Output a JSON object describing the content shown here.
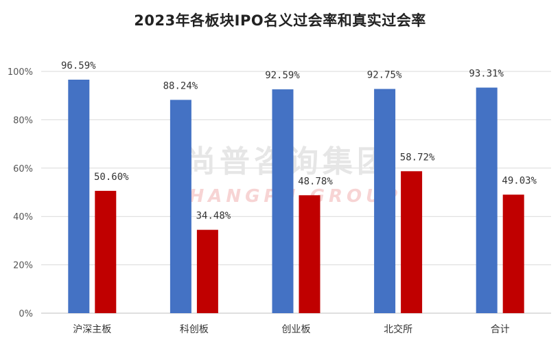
{
  "chart_data": {
    "type": "bar",
    "title": "2023年各板块IPO名义过会率和真实过会率",
    "categories": [
      "沪深主板",
      "科创板",
      "创业板",
      "北交所",
      "合计"
    ],
    "series": [
      {
        "values": [
          96.59,
          88.24,
          92.59,
          92.75,
          93.31
        ],
        "color": "#4472C4"
      },
      {
        "values": [
          50.6,
          34.48,
          48.78,
          58.72,
          49.03
        ],
        "color": "#C00000"
      }
    ],
    "data_labels": [
      [
        "96.59%",
        "88.24%",
        "92.59%",
        "92.75%",
        "93.31%"
      ],
      [
        "50.60%",
        "34.48%",
        "48.78%",
        "58.72%",
        "49.03%"
      ]
    ],
    "y_ticks": [
      "0%",
      "20%",
      "40%",
      "60%",
      "80%",
      "100%"
    ],
    "ylim": [
      0,
      100
    ],
    "grid": true,
    "legend": "none"
  },
  "watermark": {
    "cn": "尚普咨询集团",
    "en": "SHANGPU GROUP"
  }
}
